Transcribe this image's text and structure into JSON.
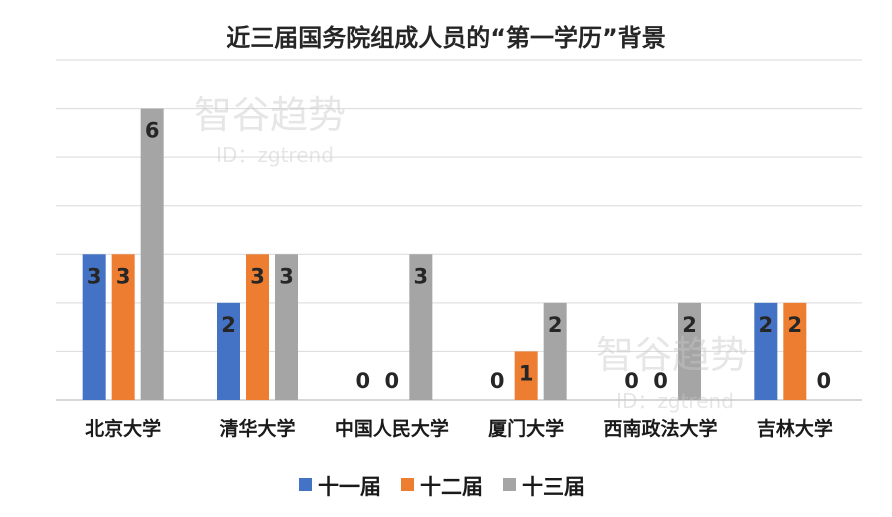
{
  "chart_data": {
    "type": "bar",
    "title": "近三届国务院组成人员的“第一学历”背景",
    "xlabel": "",
    "ylabel": "",
    "ylim": [
      0,
      6
    ],
    "grid": true,
    "legend_position": "bottom",
    "categories": [
      "北京大学",
      "清华大学",
      "中国人民大学",
      "厦门大学",
      "西南政法大学",
      "吉林大学"
    ],
    "series": [
      {
        "name": "十一届",
        "color": "#4472c4",
        "values": [
          3,
          2,
          0,
          0,
          0,
          2
        ]
      },
      {
        "name": "十二届",
        "color": "#ed7d31",
        "values": [
          3,
          3,
          0,
          1,
          0,
          2
        ]
      },
      {
        "name": "十三届",
        "color": "#a5a5a5",
        "values": [
          6,
          3,
          3,
          2,
          2,
          0
        ]
      }
    ]
  },
  "watermark": {
    "brand": "智谷趋势",
    "id_text": "ID：zgtrend"
  }
}
